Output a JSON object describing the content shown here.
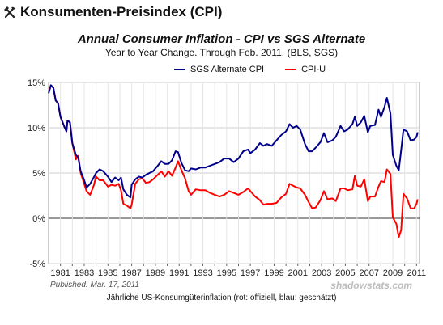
{
  "page": {
    "heading": "Konsumenten-Preisindex (CPI)",
    "heading_icon": "hammer-pick-icon",
    "published": "Published: Mar. 17, 2011",
    "watermark": "shadowstats.com",
    "caption": "Jährliche US-Konsumgüterinflation (rot: offiziell, blau: geschätzt)"
  },
  "chart_data": {
    "type": "line",
    "title": "Annual Consumer Inflation - CPI vs SGS Alternate",
    "subtitle": "Year to Year Change. Through Feb. 2011.    (BLS, SGS)",
    "xlabel": "",
    "ylabel": "",
    "xlim": [
      1980.0,
      2011.25
    ],
    "ylim": [
      -5,
      15
    ],
    "grid": true,
    "legend_position": "top-center",
    "x_tick_labels": [
      "1981",
      "1983",
      "1985",
      "1987",
      "1989",
      "1991",
      "1993",
      "1995",
      "1997",
      "1999",
      "2001",
      "2003",
      "2005",
      "2007",
      "2009",
      "2011"
    ],
    "y_tick_labels": [
      "15%",
      "10%",
      "5%",
      "0%",
      "-5%"
    ],
    "y_tick_values": [
      15,
      10,
      5,
      0,
      -5
    ],
    "series": [
      {
        "name": "SGS Alternate CPI",
        "color": "#00008b",
        "points": [
          [
            1980.0,
            13.8
          ],
          [
            1980.2,
            14.7
          ],
          [
            1980.4,
            14.4
          ],
          [
            1980.6,
            13.0
          ],
          [
            1980.8,
            12.7
          ],
          [
            1981.0,
            11.2
          ],
          [
            1981.3,
            10.2
          ],
          [
            1981.5,
            9.6
          ],
          [
            1981.6,
            10.8
          ],
          [
            1981.8,
            10.6
          ],
          [
            1982.0,
            8.3
          ],
          [
            1982.3,
            7.0
          ],
          [
            1982.5,
            6.7
          ],
          [
            1982.7,
            5.2
          ],
          [
            1983.0,
            4.2
          ],
          [
            1983.2,
            3.4
          ],
          [
            1983.5,
            3.8
          ],
          [
            1983.8,
            4.5
          ],
          [
            1984.0,
            5.0
          ],
          [
            1984.3,
            5.4
          ],
          [
            1984.6,
            5.2
          ],
          [
            1985.0,
            4.6
          ],
          [
            1985.3,
            4.0
          ],
          [
            1985.6,
            4.5
          ],
          [
            1985.9,
            4.2
          ],
          [
            1986.1,
            4.5
          ],
          [
            1986.3,
            3.2
          ],
          [
            1986.6,
            2.6
          ],
          [
            1986.9,
            2.3
          ],
          [
            1987.0,
            3.7
          ],
          [
            1987.3,
            4.3
          ],
          [
            1987.6,
            4.6
          ],
          [
            1987.9,
            4.5
          ],
          [
            1988.2,
            4.8
          ],
          [
            1988.5,
            5.0
          ],
          [
            1988.8,
            5.2
          ],
          [
            1989.2,
            5.8
          ],
          [
            1989.5,
            6.3
          ],
          [
            1989.8,
            6.0
          ],
          [
            1990.1,
            6.0
          ],
          [
            1990.4,
            6.4
          ],
          [
            1990.7,
            7.4
          ],
          [
            1990.9,
            7.3
          ],
          [
            1991.2,
            6.1
          ],
          [
            1991.5,
            5.3
          ],
          [
            1991.8,
            5.2
          ],
          [
            1992.0,
            5.5
          ],
          [
            1992.4,
            5.4
          ],
          [
            1992.8,
            5.6
          ],
          [
            1993.2,
            5.6
          ],
          [
            1993.6,
            5.8
          ],
          [
            1994.0,
            6.0
          ],
          [
            1994.4,
            6.2
          ],
          [
            1994.8,
            6.6
          ],
          [
            1995.2,
            6.6
          ],
          [
            1995.6,
            6.2
          ],
          [
            1996.0,
            6.6
          ],
          [
            1996.4,
            7.4
          ],
          [
            1996.8,
            7.6
          ],
          [
            1997.0,
            7.2
          ],
          [
            1997.4,
            7.6
          ],
          [
            1997.8,
            8.3
          ],
          [
            1998.1,
            8.0
          ],
          [
            1998.4,
            8.2
          ],
          [
            1998.8,
            8.0
          ],
          [
            1999.2,
            8.6
          ],
          [
            1999.6,
            9.2
          ],
          [
            2000.0,
            9.6
          ],
          [
            2000.3,
            10.4
          ],
          [
            2000.6,
            10.0
          ],
          [
            2000.9,
            10.2
          ],
          [
            2001.2,
            9.8
          ],
          [
            2001.6,
            8.2
          ],
          [
            2001.9,
            7.4
          ],
          [
            2002.2,
            7.4
          ],
          [
            2002.5,
            7.8
          ],
          [
            2002.9,
            8.4
          ],
          [
            2003.2,
            9.4
          ],
          [
            2003.5,
            8.4
          ],
          [
            2003.9,
            8.6
          ],
          [
            2004.2,
            9.0
          ],
          [
            2004.6,
            10.2
          ],
          [
            2004.9,
            9.6
          ],
          [
            2005.2,
            9.8
          ],
          [
            2005.6,
            10.4
          ],
          [
            2005.8,
            11.2
          ],
          [
            2006.0,
            10.2
          ],
          [
            2006.3,
            10.6
          ],
          [
            2006.6,
            11.3
          ],
          [
            2006.9,
            9.5
          ],
          [
            2007.1,
            10.2
          ],
          [
            2007.5,
            10.3
          ],
          [
            2007.8,
            12.0
          ],
          [
            2008.0,
            11.2
          ],
          [
            2008.3,
            12.3
          ],
          [
            2008.5,
            13.3
          ],
          [
            2008.8,
            11.6
          ],
          [
            2009.0,
            7.0
          ],
          [
            2009.3,
            5.8
          ],
          [
            2009.5,
            5.3
          ],
          [
            2009.7,
            7.5
          ],
          [
            2009.9,
            9.8
          ],
          [
            2010.2,
            9.6
          ],
          [
            2010.5,
            8.6
          ],
          [
            2010.8,
            8.7
          ],
          [
            2011.0,
            9.0
          ],
          [
            2011.1,
            9.5
          ]
        ]
      },
      {
        "name": "CPI-U",
        "color": "#ff0000",
        "points": [
          [
            1980.0,
            14.0
          ],
          [
            1980.2,
            14.7
          ],
          [
            1980.4,
            14.4
          ],
          [
            1980.6,
            13.0
          ],
          [
            1980.8,
            12.7
          ],
          [
            1981.0,
            11.2
          ],
          [
            1981.3,
            10.2
          ],
          [
            1981.5,
            9.6
          ],
          [
            1981.6,
            10.8
          ],
          [
            1981.8,
            10.6
          ],
          [
            1982.0,
            8.3
          ],
          [
            1982.3,
            6.5
          ],
          [
            1982.5,
            6.9
          ],
          [
            1982.7,
            5.0
          ],
          [
            1983.0,
            3.8
          ],
          [
            1983.2,
            3.0
          ],
          [
            1983.5,
            2.6
          ],
          [
            1983.8,
            3.6
          ],
          [
            1984.0,
            4.6
          ],
          [
            1984.3,
            4.2
          ],
          [
            1984.6,
            4.2
          ],
          [
            1985.0,
            3.5
          ],
          [
            1985.3,
            3.7
          ],
          [
            1985.6,
            3.6
          ],
          [
            1985.9,
            3.8
          ],
          [
            1986.1,
            3.1
          ],
          [
            1986.3,
            1.6
          ],
          [
            1986.6,
            1.4
          ],
          [
            1986.9,
            1.1
          ],
          [
            1987.0,
            1.5
          ],
          [
            1987.3,
            3.8
          ],
          [
            1987.6,
            4.3
          ],
          [
            1987.9,
            4.4
          ],
          [
            1988.2,
            3.9
          ],
          [
            1988.5,
            4.0
          ],
          [
            1988.8,
            4.3
          ],
          [
            1989.2,
            4.8
          ],
          [
            1989.5,
            5.2
          ],
          [
            1989.8,
            4.6
          ],
          [
            1990.1,
            5.2
          ],
          [
            1990.4,
            4.7
          ],
          [
            1990.7,
            5.6
          ],
          [
            1990.9,
            6.3
          ],
          [
            1991.2,
            5.3
          ],
          [
            1991.5,
            4.4
          ],
          [
            1991.8,
            3.0
          ],
          [
            1992.0,
            2.6
          ],
          [
            1992.4,
            3.2
          ],
          [
            1992.8,
            3.1
          ],
          [
            1993.2,
            3.1
          ],
          [
            1993.6,
            2.8
          ],
          [
            1994.0,
            2.6
          ],
          [
            1994.4,
            2.4
          ],
          [
            1994.8,
            2.6
          ],
          [
            1995.2,
            3.0
          ],
          [
            1995.6,
            2.8
          ],
          [
            1996.0,
            2.6
          ],
          [
            1996.4,
            2.9
          ],
          [
            1996.8,
            3.3
          ],
          [
            1997.0,
            3.0
          ],
          [
            1997.4,
            2.4
          ],
          [
            1997.8,
            2.0
          ],
          [
            1998.1,
            1.5
          ],
          [
            1998.4,
            1.6
          ],
          [
            1998.8,
            1.6
          ],
          [
            1999.2,
            1.7
          ],
          [
            1999.6,
            2.3
          ],
          [
            2000.0,
            2.7
          ],
          [
            2000.3,
            3.8
          ],
          [
            2000.6,
            3.6
          ],
          [
            2000.9,
            3.4
          ],
          [
            2001.2,
            3.3
          ],
          [
            2001.6,
            2.6
          ],
          [
            2001.9,
            1.8
          ],
          [
            2002.2,
            1.1
          ],
          [
            2002.5,
            1.2
          ],
          [
            2002.9,
            2.0
          ],
          [
            2003.2,
            3.0
          ],
          [
            2003.5,
            2.1
          ],
          [
            2003.9,
            2.2
          ],
          [
            2004.2,
            1.9
          ],
          [
            2004.6,
            3.3
          ],
          [
            2004.9,
            3.3
          ],
          [
            2005.2,
            3.1
          ],
          [
            2005.6,
            3.2
          ],
          [
            2005.8,
            4.7
          ],
          [
            2006.0,
            3.6
          ],
          [
            2006.3,
            3.5
          ],
          [
            2006.6,
            4.3
          ],
          [
            2006.9,
            1.9
          ],
          [
            2007.1,
            2.4
          ],
          [
            2007.5,
            2.4
          ],
          [
            2007.8,
            3.5
          ],
          [
            2008.0,
            4.1
          ],
          [
            2008.3,
            4.0
          ],
          [
            2008.5,
            5.4
          ],
          [
            2008.8,
            4.9
          ],
          [
            2009.0,
            0.1
          ],
          [
            2009.3,
            -0.6
          ],
          [
            2009.5,
            -2.1
          ],
          [
            2009.7,
            -1.3
          ],
          [
            2009.9,
            2.7
          ],
          [
            2010.2,
            2.2
          ],
          [
            2010.5,
            1.1
          ],
          [
            2010.8,
            1.1
          ],
          [
            2011.0,
            1.6
          ],
          [
            2011.1,
            2.1
          ]
        ]
      }
    ]
  }
}
